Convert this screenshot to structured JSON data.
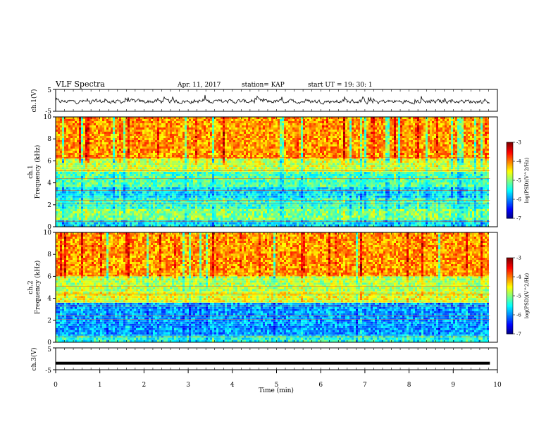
{
  "header": {
    "title": "VLF Spectra",
    "date": "Apr. 11, 2017",
    "station": "station= KAP",
    "start": "start  UT =   19: 30: 1"
  },
  "chart_data": [
    {
      "type": "line",
      "panel": "ch1-waveform",
      "ylabel": "ch.1(V)",
      "ylim": [
        -5,
        5
      ],
      "yticks": [
        "5",
        "-5"
      ],
      "xlim": [
        0,
        10
      ],
      "x_end": 9.83,
      "line_color": "#000000",
      "description_values": {
        "baseline": -0.5,
        "amplitude": 1.5
      }
    },
    {
      "type": "heatmap",
      "panel": "ch1-spectrogram",
      "ylabel": "ch.1\nFrequency (kHz)",
      "ylabel_line1": "ch.1",
      "ylabel_line2": "Frequency (kHz)",
      "ylim": [
        0,
        10
      ],
      "yticks": [
        "0",
        "2",
        "4",
        "6",
        "8",
        "10"
      ],
      "xlim": [
        0,
        10
      ],
      "x_end": 9.83,
      "colorbar": {
        "label": "log(PSD)(V^2/Hz)",
        "min": -7,
        "max": -3,
        "ticks": [
          "-3",
          "-4",
          "-5",
          "-6",
          "-7"
        ]
      },
      "bands": [
        {
          "from": 0,
          "to": 0.6,
          "level": -5.6
        },
        {
          "from": 0.6,
          "to": 1.6,
          "level": -5.0
        },
        {
          "from": 1.6,
          "to": 2.6,
          "level": -5.3
        },
        {
          "from": 2.6,
          "to": 3.6,
          "level": -5.6
        },
        {
          "from": 3.6,
          "to": 5.0,
          "level": -5.2
        },
        {
          "from": 5.0,
          "to": 6.2,
          "level": -4.7
        },
        {
          "from": 6.2,
          "to": 10.0,
          "level": -4.1
        }
      ]
    },
    {
      "type": "heatmap",
      "panel": "ch2-spectrogram",
      "ylabel": "ch.2\nFrequency (kHz)",
      "ylabel_line1": "ch.2",
      "ylabel_line2": "Frequency (kHz)",
      "ylim": [
        0,
        10
      ],
      "yticks": [
        "0",
        "2",
        "4",
        "6",
        "8",
        "10"
      ],
      "xlim": [
        0,
        10
      ],
      "x_end": 9.83,
      "colorbar": {
        "label": "log(PSD)(V^2/Hz)",
        "min": -7,
        "max": -3,
        "ticks": [
          "-3",
          "-4",
          "-5",
          "-6",
          "-7"
        ]
      },
      "bands": [
        {
          "from": 0,
          "to": 0.6,
          "level": -5.4
        },
        {
          "from": 0.6,
          "to": 3.6,
          "level": -5.9
        },
        {
          "from": 3.6,
          "to": 4.6,
          "level": -4.6
        },
        {
          "from": 4.6,
          "to": 6.0,
          "level": -4.8
        },
        {
          "from": 6.0,
          "to": 10.0,
          "level": -4.1
        }
      ]
    },
    {
      "type": "line",
      "panel": "ch3-waveform",
      "ylabel": "ch.3(V)",
      "ylim": [
        -5,
        5
      ],
      "yticks": [
        "5",
        "-5"
      ],
      "xlim": [
        0,
        10
      ],
      "x_end": 9.83,
      "value": -2.0,
      "xlabel": "Time (min)",
      "xticks": [
        "0",
        "1",
        "2",
        "3",
        "4",
        "5",
        "6",
        "7",
        "8",
        "9",
        "10"
      ]
    }
  ]
}
